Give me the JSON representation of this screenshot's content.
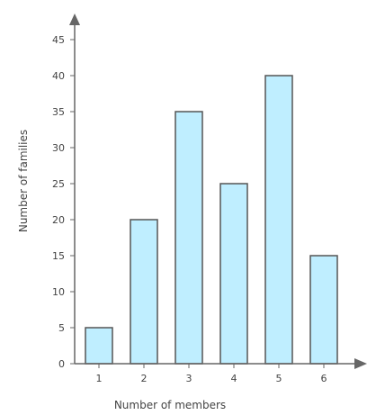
{
  "chart_data": {
    "type": "bar",
    "categories": [
      "1",
      "2",
      "3",
      "4",
      "5",
      "6"
    ],
    "values": [
      5,
      20,
      35,
      25,
      40,
      15
    ],
    "xlabel": "Number of members",
    "ylabel": "Number of families",
    "ylim": [
      0,
      45
    ],
    "yticks": [
      "0",
      "5",
      "10",
      "15",
      "20",
      "25",
      "30",
      "35",
      "40",
      "45"
    ],
    "grid": false,
    "bar_fill": "#bfeeff",
    "bar_stroke": "#555555",
    "axis_color": "#666666"
  }
}
